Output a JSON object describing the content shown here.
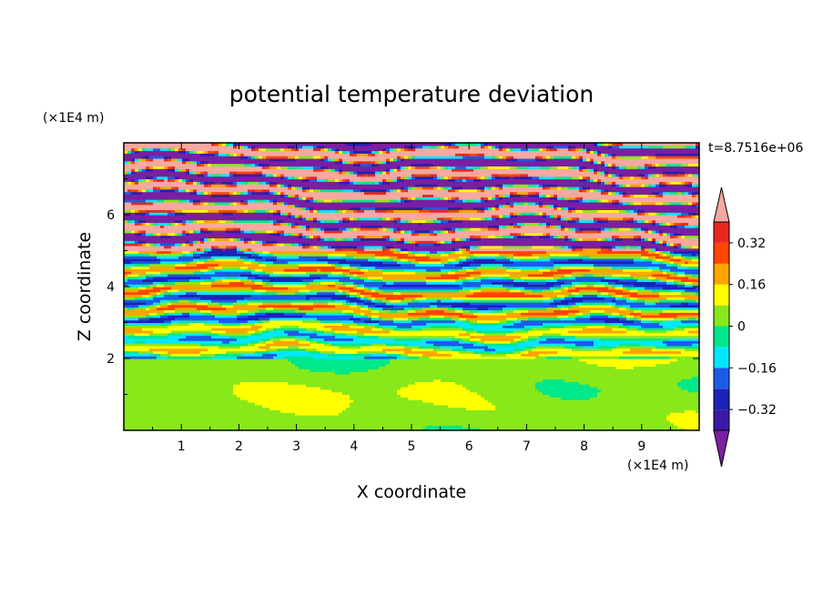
{
  "chart_data": {
    "type": "heatmap",
    "title": "potential temperature deviation",
    "xlabel": "X coordinate",
    "ylabel": "Z coordinate",
    "x_unit": "(×1E4 m)",
    "y_unit": "(×1E4 m)",
    "time_label": "t=8.7516e+06",
    "xlim": [
      0,
      10
    ],
    "ylim": [
      0,
      8
    ],
    "x_ticks": [
      "1",
      "2",
      "3",
      "4",
      "5",
      "6",
      "7",
      "8",
      "9"
    ],
    "y_ticks": [
      "2",
      "4",
      "6"
    ],
    "colorbar": {
      "levels": [
        -0.4,
        -0.32,
        -0.24,
        -0.16,
        -0.08,
        0,
        0.08,
        0.16,
        0.24,
        0.32,
        0.4
      ],
      "labels": [
        "0.32",
        "0.16",
        "0",
        "−0.16",
        "−0.32"
      ],
      "colors": [
        "#7b1fa2",
        "#3c19a6",
        "#1b23b8",
        "#1c5be8",
        "#00e8ff",
        "#00e88a",
        "#88e81a",
        "#ffff00",
        "#ffa500",
        "#ff4500",
        "#e8281e",
        "#f7a8a0"
      ],
      "extend": "both"
    },
    "regions": [
      {
        "z_range": [
          0,
          2
        ],
        "description": "mostly 0 to 0.08 (green/lime) convective mixed layer"
      },
      {
        "z_range": [
          2,
          5
        ],
        "description": "thin alternating bands of -0.16 to +0.32"
      },
      {
        "z_range": [
          5,
          8
        ],
        "description": "strong layered bands alternating below -0.4 and above 0.4"
      }
    ]
  }
}
